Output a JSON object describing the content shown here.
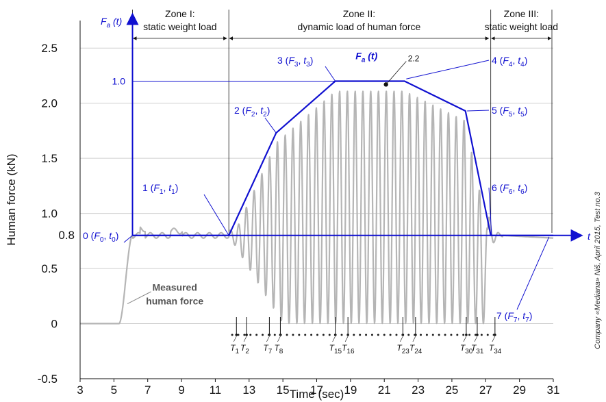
{
  "chart_data": {
    "type": "line",
    "title": "",
    "xlabel": "Time (sec)",
    "ylabel": "Human force (kN)",
    "xlim": [
      3,
      31
    ],
    "ylim": [
      -0.5,
      2.75
    ],
    "x_ticks": [
      3,
      5,
      7,
      9,
      11,
      13,
      15,
      17,
      19,
      21,
      23,
      25,
      27,
      29,
      31
    ],
    "y_ticks": [
      -0.5,
      0,
      0.5,
      1.0,
      1.5,
      2.0,
      2.5
    ],
    "grid": "horizontal",
    "zones": [
      {
        "line1": "Zone I:",
        "line2": "static weight load",
        "from": 6.1,
        "to": 11.8
      },
      {
        "line1": "Zone II:",
        "line2": "dynamic load of human force",
        "from": 11.8,
        "to": 27.3
      },
      {
        "line1": "Zone III:",
        "line2": "static weight load",
        "from": 27.3,
        "to": 31
      }
    ],
    "inner_axis": {
      "y_label": "F",
      "y_sub": "a",
      "y_suffix": " (t)",
      "x_label": "t",
      "tick_label": "1.0",
      "baseline_label": "0.8",
      "origin_x": 6.1,
      "baseline": 0.8,
      "top_value": 2.2
    },
    "model_curve": {
      "name": "F_a (t)",
      "name_main": "F",
      "name_sub": "a",
      "name_suffix": " (t)",
      "peak_label": "2.2",
      "x": [
        6.1,
        11.8,
        14.6,
        18.1,
        22.2,
        25.8,
        27.3,
        31
      ],
      "y": [
        0.8,
        0.8,
        1.73,
        2.2,
        2.2,
        1.93,
        0.8,
        0.8
      ]
    },
    "points": [
      {
        "idx": "0",
        "sub": "0",
        "x": 6.1,
        "y": 0.8
      },
      {
        "idx": "1",
        "sub": "1",
        "x": 11.8,
        "y": 0.8
      },
      {
        "idx": "2",
        "sub": "2",
        "x": 14.6,
        "y": 1.73
      },
      {
        "idx": "3",
        "sub": "3",
        "x": 18.1,
        "y": 2.2
      },
      {
        "idx": "4",
        "sub": "4",
        "x": 22.2,
        "y": 2.2
      },
      {
        "idx": "5",
        "sub": "5",
        "x": 25.8,
        "y": 1.93
      },
      {
        "idx": "6",
        "sub": "6",
        "x": 27.3,
        "y": 0.8
      },
      {
        "idx": "7",
        "sub": "7",
        "x": 31.0,
        "y": 0.8
      }
    ],
    "measured_label": [
      "Measured",
      "human force"
    ],
    "period_ticks": [
      {
        "label": "T",
        "sub": "1",
        "x": 12.25
      },
      {
        "label": "T",
        "sub": "2",
        "x": 12.85
      },
      {
        "label": "T",
        "sub": "7",
        "x": 14.2
      },
      {
        "label": "T",
        "sub": "8",
        "x": 14.85
      },
      {
        "label": "T",
        "sub": "15",
        "x": 18.1
      },
      {
        "label": "T",
        "sub": "16",
        "x": 18.85
      },
      {
        "label": "T",
        "sub": "23",
        "x": 22.1
      },
      {
        "label": "T",
        "sub": "24",
        "x": 22.85
      },
      {
        "label": "T",
        "sub": "30",
        "x": 25.85
      },
      {
        "label": "T",
        "sub": "31",
        "x": 26.5
      },
      {
        "label": "T",
        "sub": "34",
        "x": 27.55
      }
    ],
    "credit": "Company «Mediana» Niš, April 2015, Test no.3"
  }
}
